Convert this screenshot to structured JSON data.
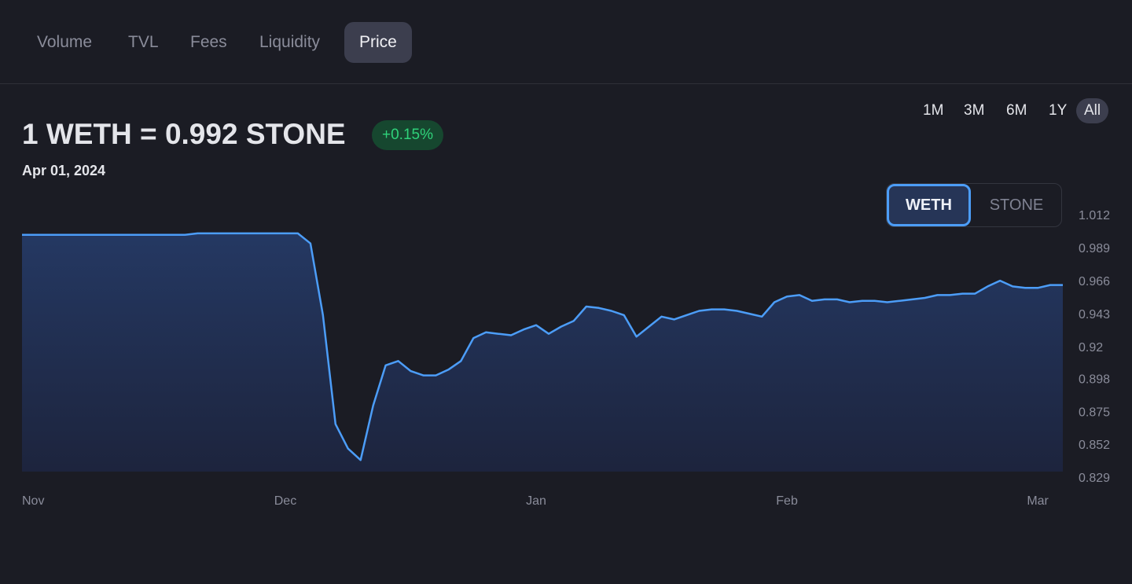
{
  "tabs": [
    "Volume",
    "TVL",
    "Fees",
    "Liquidity",
    "Price"
  ],
  "header": {
    "pair_price": "1 WETH = 0.992 STONE",
    "change": "+0.15%",
    "date": "Apr 01, 2024"
  },
  "ranges": [
    "1M",
    "3M",
    "6M",
    "1Y",
    "All"
  ],
  "token_toggle": [
    "WETH",
    "STONE"
  ],
  "chart_data": {
    "type": "area",
    "color": "#4c9df8",
    "categories": [
      "Nov",
      null,
      null,
      null,
      null,
      null,
      null,
      null,
      null,
      null,
      null,
      null,
      null,
      null,
      null,
      null,
      null,
      null,
      null,
      null,
      null,
      "Dec",
      null,
      null,
      null,
      null,
      null,
      null,
      null,
      null,
      null,
      null,
      null,
      null,
      null,
      null,
      null,
      null,
      null,
      null,
      null,
      "Jan",
      null,
      null,
      null,
      null,
      null,
      null,
      null,
      null,
      null,
      null,
      null,
      null,
      null,
      null,
      null,
      null,
      null,
      null,
      null,
      "Feb",
      null,
      null,
      null,
      null,
      null,
      null,
      null,
      null,
      null,
      null,
      null,
      null,
      null,
      null,
      null,
      null,
      null,
      null,
      null,
      "Mar",
      null,
      null
    ],
    "values": [
      0.999,
      0.999,
      0.999,
      0.999,
      0.999,
      0.999,
      0.999,
      0.999,
      0.999,
      0.999,
      0.999,
      0.999,
      0.999,
      0.999,
      1.0,
      1.0,
      1.0,
      1.0,
      1.0,
      1.0,
      1.0,
      1.0,
      1.0,
      0.993,
      0.943,
      0.867,
      0.85,
      0.842,
      0.88,
      0.908,
      0.911,
      0.904,
      0.901,
      0.901,
      0.905,
      0.911,
      0.927,
      0.931,
      0.93,
      0.929,
      0.933,
      0.936,
      0.93,
      0.935,
      0.939,
      0.949,
      0.948,
      0.946,
      0.943,
      0.928,
      0.935,
      0.942,
      0.94,
      0.943,
      0.946,
      0.947,
      0.947,
      0.946,
      0.944,
      0.942,
      0.952,
      0.956,
      0.957,
      0.953,
      0.954,
      0.954,
      0.952,
      0.953,
      0.953,
      0.952,
      0.953,
      0.954,
      0.955,
      0.957,
      0.957,
      0.958,
      0.958,
      0.963,
      0.967,
      0.963,
      0.962,
      0.962,
      0.964,
      0.964
    ],
    "ylim": [
      0.829,
      1.012
    ],
    "yticks": [
      1.012,
      0.989,
      0.966,
      0.943,
      0.92,
      0.898,
      0.875,
      0.852,
      0.829
    ]
  }
}
